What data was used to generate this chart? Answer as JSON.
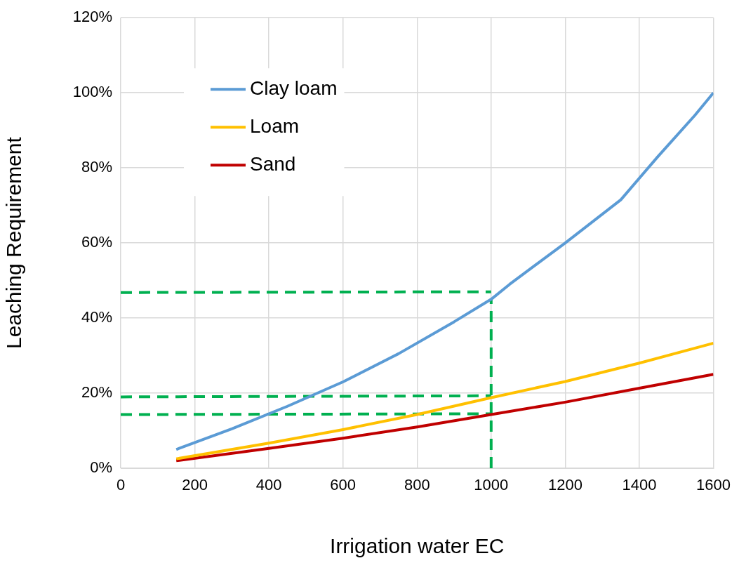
{
  "chart_data": {
    "type": "line",
    "xlabel": "Irrigation water EC",
    "ylabel": "Leaching Requirement",
    "xlim": [
      0,
      1600
    ],
    "xticks": [
      0,
      200,
      400,
      600,
      800,
      1000,
      1200,
      1400,
      1600
    ],
    "ylim": [
      0,
      120
    ],
    "yticks": [
      {
        "value": 0,
        "label": "0%"
      },
      {
        "value": 20,
        "label": "20%"
      },
      {
        "value": 40,
        "label": "40%"
      },
      {
        "value": 60,
        "label": "60%"
      },
      {
        "value": 80,
        "label": "80%"
      },
      {
        "value": 100,
        "label": "100%"
      },
      {
        "value": 120,
        "label": "120%"
      }
    ],
    "grid": true,
    "legend": "top left",
    "marker": "none",
    "line_style": "solid",
    "series": [
      {
        "name": "Clay loam",
        "color": "#5b9bd5",
        "x": [
          150,
          300,
          450,
          600,
          750,
          900,
          1000,
          1050,
          1200,
          1350,
          1450,
          1550,
          1600
        ],
        "values": [
          5,
          10.5,
          16.5,
          23,
          30.5,
          39,
          45,
          49,
          60,
          71.5,
          83,
          94,
          100
        ]
      },
      {
        "name": "Loam",
        "color": "#ffc000",
        "x": [
          150,
          400,
          600,
          800,
          1000,
          1200,
          1400,
          1600
        ],
        "values": [
          2.5,
          6.7,
          10.3,
          14.3,
          18.8,
          23.1,
          28,
          33.3
        ]
      },
      {
        "name": "Sand",
        "color": "#c00000",
        "x": [
          150,
          400,
          600,
          800,
          1000,
          1200,
          1400,
          1600
        ],
        "values": [
          2,
          5.3,
          8,
          11,
          14.3,
          17.6,
          21.3,
          25
        ]
      },
      {
        "color": "#00b050",
        "line_style": "dashed",
        "x": [
          0,
          1000
        ],
        "values": [
          46.8,
          47
        ]
      },
      {
        "color": "#00b050",
        "line_style": "dashed",
        "x": [
          0,
          1000
        ],
        "values": [
          19,
          19.3
        ]
      },
      {
        "color": "#00b050",
        "line_style": "dashed",
        "x": [
          0,
          1000
        ],
        "values": [
          14.3,
          14.5
        ]
      },
      {
        "color": "#00b050",
        "line_style": "dashed",
        "x": [
          1000,
          1000
        ],
        "values": [
          0,
          45
        ]
      }
    ]
  }
}
